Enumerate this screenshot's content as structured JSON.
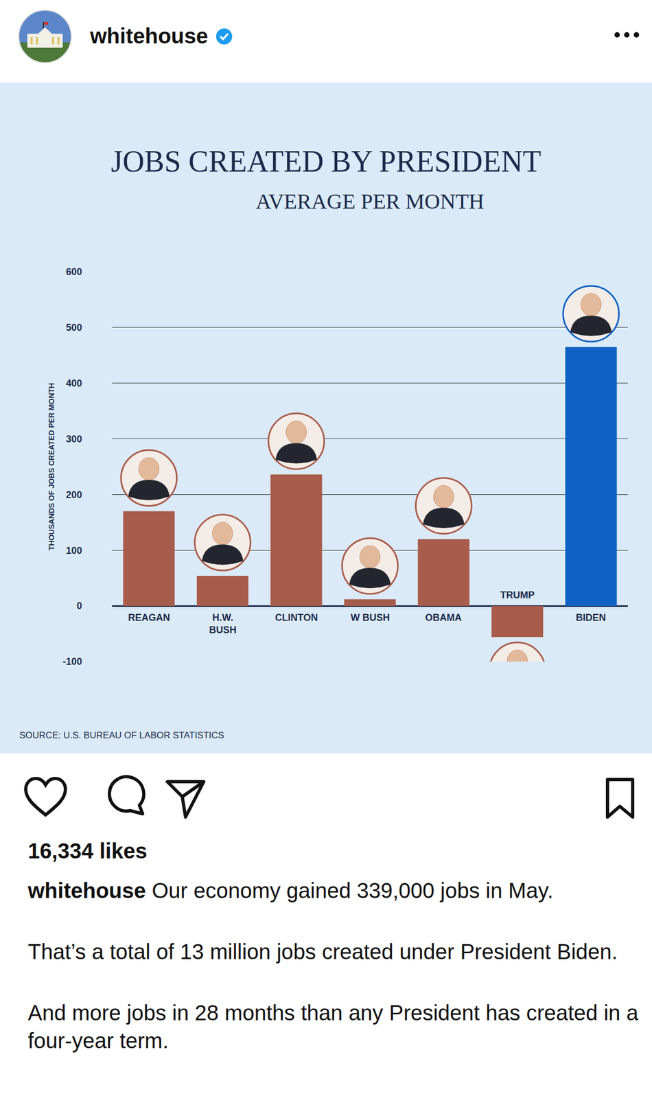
{
  "post": {
    "account": "whitehouse",
    "likes": "16,334 likes",
    "caption": [
      "Our economy gained 339,000 jobs in May.",
      "That’s a total of 13 million jobs created under President Biden.",
      "And more jobs in 28 months than any President has created in a four-year term."
    ]
  },
  "chart_data": {
    "type": "bar",
    "title": "JOBS CREATED BY PRESIDENT",
    "subtitle": "AVERAGE PER MONTH",
    "ylabel": "THOUSANDS OF JOBS CREATED PER MONTH",
    "annotations": [
      "SOURCE: U.S. BUREAU OF LABOR STATISTICS"
    ],
    "categories": [
      "REAGAN",
      "H.W. BUSH",
      "CLINTON",
      "W BUSH",
      "OBAMA",
      "TRUMP",
      "BIDEN"
    ],
    "values": [
      170,
      54,
      236,
      12,
      120,
      -56,
      465
    ],
    "colors": [
      "#a85c4c",
      "#a85c4c",
      "#a85c4c",
      "#a85c4c",
      "#a85c4c",
      "#a85c4c",
      "#0f62c4"
    ],
    "ylim": [
      -100,
      600
    ],
    "yticks": [
      -100,
      0,
      100,
      200,
      300,
      400,
      500,
      600
    ],
    "grid": true
  }
}
